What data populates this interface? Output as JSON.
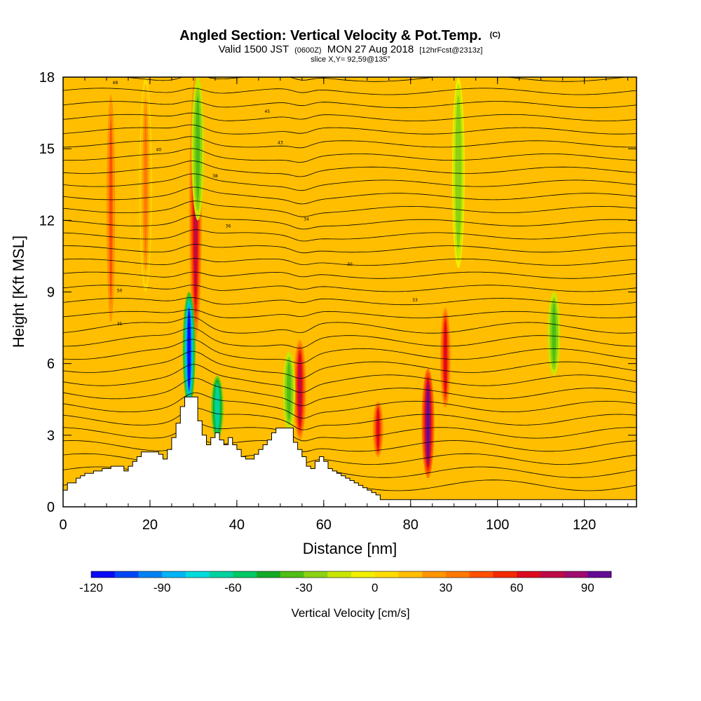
{
  "header": {
    "title": "Angled Section: Vertical Velocity & Pot.Temp.",
    "copyright": "(C)",
    "subtitle_main": "Valid 1500 JST",
    "subtitle_utc": "(0600Z)",
    "subtitle_date": "MON 27 Aug 2018",
    "subtitle_fcst": "[12hrFcst@2313z]",
    "slice": "slice X,Y= 92,59@135°"
  },
  "chart_data": {
    "type": "heatmap",
    "xlabel": "Distance [nm]",
    "ylabel": "Height [Kft MSL]",
    "xlim": [
      0,
      132
    ],
    "ylim": [
      0,
      18
    ],
    "x_ticks": [
      "0",
      "20",
      "40",
      "60",
      "80",
      "100",
      "120"
    ],
    "y_ticks": [
      "0",
      "3",
      "6",
      "9",
      "12",
      "15",
      "18"
    ],
    "colorbar": {
      "label": "Vertical Velocity [cm/s]",
      "ticks": [
        "-120",
        "-90",
        "-60",
        "-30",
        "0",
        "30",
        "60",
        "90"
      ],
      "min": -120,
      "max": 100,
      "step": 10,
      "colors": [
        "#0a0af5",
        "#0046f5",
        "#0082f5",
        "#00b4f5",
        "#00dcdc",
        "#00d2a0",
        "#00c864",
        "#14aa28",
        "#50be14",
        "#8cd214",
        "#c8e600",
        "#f0f000",
        "#ffdc00",
        "#ffbe00",
        "#ff9600",
        "#ff7800",
        "#ff5000",
        "#f52800",
        "#dc0a1e",
        "#be0a46",
        "#a00a6e",
        "#640a96"
      ]
    },
    "terrain_profile": {
      "x": [
        0,
        1,
        2,
        3,
        4,
        5,
        6,
        7,
        8,
        9,
        10,
        11,
        12,
        13,
        14,
        15,
        16,
        17,
        18,
        19,
        20,
        21,
        22,
        23,
        24,
        25,
        26,
        27,
        28,
        29,
        30,
        31,
        32,
        33,
        34,
        35,
        36,
        37,
        38,
        39,
        40,
        41,
        42,
        43,
        44,
        45,
        46,
        47,
        48,
        49,
        50,
        51,
        52,
        53,
        54,
        55,
        56,
        57,
        58,
        59,
        60,
        61,
        62,
        63,
        64,
        65,
        66,
        67,
        68,
        69,
        70,
        71,
        72,
        73,
        132
      ],
      "height_kft": [
        0.7,
        1.0,
        1.0,
        1.2,
        1.3,
        1.4,
        1.4,
        1.5,
        1.5,
        1.6,
        1.6,
        1.7,
        1.7,
        1.7,
        1.5,
        1.7,
        1.9,
        2.1,
        2.3,
        2.3,
        2.3,
        2.3,
        2.2,
        2.0,
        2.4,
        2.9,
        3.5,
        4.2,
        4.6,
        4.6,
        4.6,
        3.6,
        3.0,
        2.6,
        2.9,
        3.1,
        2.8,
        2.6,
        2.9,
        2.6,
        2.4,
        2.1,
        2.0,
        2.0,
        2.2,
        2.4,
        2.6,
        2.8,
        3.1,
        3.3,
        3.3,
        3.3,
        3.3,
        2.7,
        2.4,
        2.1,
        1.7,
        1.6,
        1.9,
        2.1,
        1.9,
        1.6,
        1.5,
        1.4,
        1.3,
        1.2,
        1.1,
        1.0,
        0.9,
        0.8,
        0.7,
        0.6,
        0.5,
        0.3,
        0.3
      ]
    },
    "updrafts": [
      {
        "x": 11,
        "ytop": 18,
        "ybot": 7,
        "peak_cm_s": 40
      },
      {
        "x": 19,
        "ytop": 18,
        "ybot": 9,
        "peak_cm_s": 30
      },
      {
        "x": 30.5,
        "ytop": 18,
        "ybot": 7,
        "peak_cm_s": 70
      },
      {
        "x": 54.5,
        "ytop": 7,
        "ybot": 2.8,
        "peak_cm_s": 70
      },
      {
        "x": 72.5,
        "ytop": 4.5,
        "ybot": 2.0,
        "peak_cm_s": 60
      },
      {
        "x": 84,
        "ytop": 5.8,
        "ybot": 1.2,
        "peak_cm_s": 100
      },
      {
        "x": 88,
        "ytop": 8.5,
        "ybot": 4.0,
        "peak_cm_s": 60
      }
    ],
    "downdrafts": [
      {
        "x": 29,
        "ytop": 9,
        "ybot": 4.2,
        "peak_cm_s": -120
      },
      {
        "x": 35.5,
        "ytop": 5.5,
        "ybot": 2.8,
        "peak_cm_s": -70
      },
      {
        "x": 52,
        "ytop": 6.5,
        "ybot": 3.2,
        "peak_cm_s": -40
      },
      {
        "x": 31,
        "ytop": 18,
        "ybot": 12,
        "peak_cm_s": -40
      },
      {
        "x": 91,
        "ytop": 18,
        "ybot": 10,
        "peak_cm_s": -30
      },
      {
        "x": 113,
        "ytop": 9,
        "ybot": 5.5,
        "peak_cm_s": -40
      }
    ],
    "isentrope_labels": [
      "48",
      "45",
      "43",
      "40",
      "38",
      "36",
      "34",
      "30",
      "50",
      "35",
      "33"
    ]
  }
}
